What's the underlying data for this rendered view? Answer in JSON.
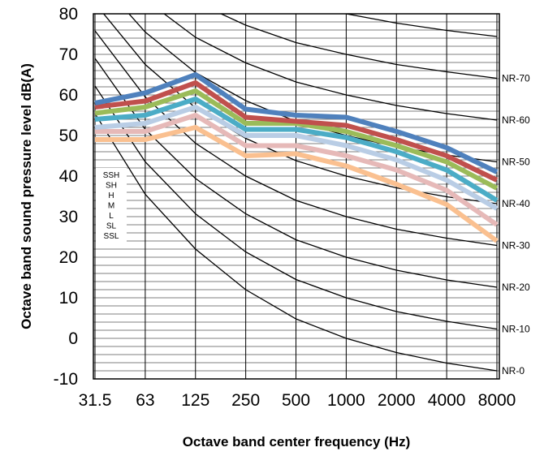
{
  "chart_data": {
    "type": "line",
    "title": "",
    "xlabel": "Octave band center frequency (Hz)",
    "ylabel": "Octave band sound pressure level dB(A)",
    "categories": [
      "31.5",
      "63",
      "125",
      "250",
      "500",
      "1000",
      "2000",
      "4000",
      "8000"
    ],
    "ylim": [
      -10,
      80
    ],
    "yticks": [
      -10,
      0,
      10,
      20,
      30,
      40,
      50,
      60,
      70,
      80
    ],
    "grid": true,
    "legend_position": "left-middle",
    "series": [
      {
        "name": "SSH",
        "color": "#4f81bd",
        "values": [
          58,
          60.5,
          65,
          56.5,
          55,
          54.5,
          51,
          47,
          41
        ]
      },
      {
        "name": "SH",
        "color": "#c0504d",
        "values": [
          57,
          58.5,
          63,
          54.5,
          53.5,
          52.5,
          49,
          45,
          39
        ]
      },
      {
        "name": "H",
        "color": "#9bbb59",
        "values": [
          55.5,
          57,
          61,
          53,
          53,
          51,
          47.5,
          43.5,
          37
        ]
      },
      {
        "name": "M",
        "color": "#4bacc6",
        "values": [
          54,
          55,
          59,
          51.5,
          51.5,
          49.5,
          46,
          41.5,
          34
        ]
      },
      {
        "name": "L",
        "color": "#b9cde5",
        "values": [
          52,
          53,
          57,
          50,
          50,
          47.5,
          44,
          39,
          32
        ]
      },
      {
        "name": "SL",
        "color": "#e6b9b8",
        "values": [
          51,
          51,
          55,
          47.5,
          47.5,
          45,
          41.5,
          36.5,
          28
        ]
      },
      {
        "name": "SSL",
        "color": "#fac090",
        "values": [
          49,
          49,
          52,
          45,
          45.5,
          42.5,
          38,
          33,
          24
        ]
      }
    ],
    "nr_curves": [
      {
        "label": "NR-0",
        "values": [
          55.4,
          35.5,
          22,
          12,
          4.8,
          0,
          -3.5,
          -6.1,
          -8
        ]
      },
      {
        "label": "NR-10",
        "values": [
          62.2,
          43.5,
          30.7,
          21.3,
          14.5,
          10,
          6.6,
          4.2,
          2.3
        ]
      },
      {
        "label": "NR-20",
        "values": [
          69,
          51.5,
          39.4,
          30.7,
          24.3,
          20,
          16.8,
          14.4,
          12.6
        ]
      },
      {
        "label": "NR-30",
        "values": [
          75.8,
          59.5,
          48.1,
          40,
          34,
          30,
          26.9,
          24.7,
          22.9
        ]
      },
      {
        "label": "NR-40",
        "values": [
          82.6,
          67.5,
          56.8,
          49.3,
          43.8,
          40,
          37.1,
          34.9,
          33.2
        ]
      },
      {
        "label": "NR-50",
        "values": [
          89.4,
          75.5,
          65.5,
          58.6,
          53.5,
          50,
          47.2,
          45.2,
          43.5
        ]
      },
      {
        "label": "NR-60",
        "values": [
          96.3,
          83.5,
          74.2,
          67.9,
          63.2,
          60,
          57.4,
          55.4,
          53.8
        ]
      },
      {
        "label": "NR-70",
        "values": [
          103.1,
          91.5,
          82.9,
          77.2,
          72.9,
          70,
          67.5,
          65.7,
          64.1
        ]
      },
      {
        "label": "",
        "values": [
          110,
          99.5,
          91.6,
          86.5,
          82.6,
          80,
          77.7,
          75.9,
          74.4
        ]
      },
      {
        "label": "",
        "values": [
          117,
          107.5,
          100.3,
          95.8,
          92.3,
          90,
          87.8,
          86.2,
          84.7
        ]
      },
      {
        "label": "",
        "values": [
          124,
          115.5,
          109,
          105.1,
          102,
          100,
          98,
          96.4,
          95
        ]
      },
      {
        "label": "",
        "values": [
          130,
          123.5,
          117.7,
          114.4,
          111.7,
          110,
          108.1,
          106.7,
          105.3
        ]
      },
      {
        "label": "",
        "values": [
          137,
          131.5,
          126.4,
          123.7,
          121.4,
          120,
          118.3,
          116.9,
          115.6
        ]
      },
      {
        "label": "",
        "values": [
          144,
          139.5,
          135.1,
          133,
          131.1,
          130,
          128.4,
          127.2,
          125.9
        ]
      }
    ]
  }
}
